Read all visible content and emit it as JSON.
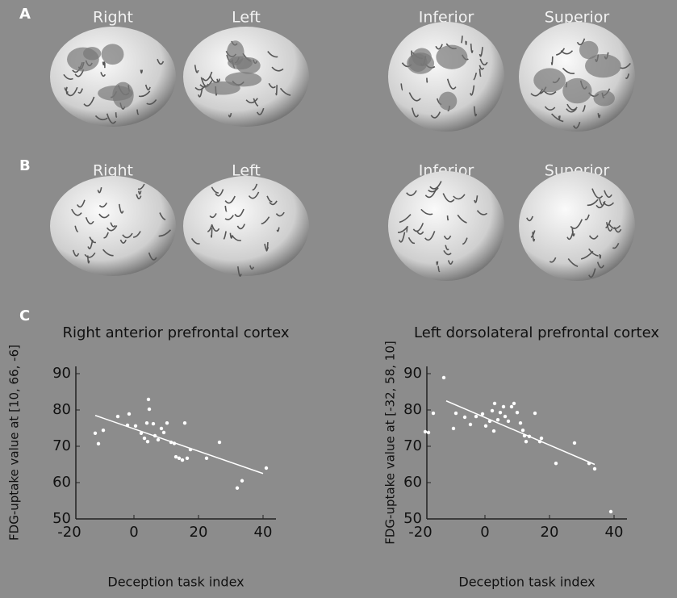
{
  "panels": [
    {
      "label": "A",
      "views": [
        "Right",
        "Left",
        "Inferior",
        "Superior"
      ]
    },
    {
      "label": "B",
      "views": [
        "Right",
        "Left",
        "Inferior",
        "Superior"
      ]
    }
  ],
  "chart_panel_label": "C",
  "chart_data": [
    {
      "type": "scatter",
      "title": "Right anterior prefrontal cortex",
      "x_label": "Deception task index",
      "y_label": "FDG-uptake value at [10, 66, -6]",
      "x": [
        -12,
        -11,
        -9.5,
        -5,
        -1.5,
        -2,
        0.5,
        2.25,
        3.25,
        4.25,
        4.5,
        4.75,
        4,
        6,
        6.5,
        7.5,
        8.5,
        9.25,
        10.25,
        11.5,
        12.5,
        13,
        14,
        15,
        15.75,
        16.5,
        17.5,
        22.5,
        26.5,
        32,
        33.5,
        41
      ],
      "values": [
        73.6,
        70.7,
        74.4,
        78.2,
        78.9,
        75.8,
        75.6,
        73.6,
        72.2,
        71.3,
        82.9,
        80.2,
        76.4,
        76.2,
        72.9,
        71.8,
        74.9,
        73.8,
        76.4,
        71.1,
        70.8,
        67.1,
        66.7,
        66.2,
        76.4,
        66.7,
        69.1,
        66.7,
        71.1,
        58.5,
        60.5,
        64
      ],
      "color": "#ffffff",
      "fit": {
        "x": [
          -12,
          40
        ],
        "y": [
          78.5,
          62.5
        ]
      },
      "xlim": [
        -18,
        44
      ],
      "ylim": [
        50,
        92
      ],
      "xticks": [
        -20,
        0,
        20,
        40
      ],
      "yticks": [
        50,
        60,
        70,
        80,
        90
      ]
    },
    {
      "type": "scatter",
      "title": "Left dorsolateral prefrontal cortex",
      "x_label": "Deception task index",
      "y_label": "FDG-uptake value at [-32, 58, 10]",
      "x": [
        -18.5,
        -17.5,
        -16,
        -12.75,
        -9.75,
        -9,
        -6.25,
        -4.5,
        -2.75,
        -0.75,
        0.25,
        1.5,
        2.25,
        2.75,
        3,
        4,
        4.75,
        5.75,
        6.25,
        7.25,
        8.25,
        9,
        10,
        11,
        11.75,
        12.25,
        12.75,
        13.75,
        15.5,
        17,
        17.5,
        22,
        27.75,
        32.25,
        34,
        39
      ],
      "values": [
        74,
        73.8,
        79.1,
        88.9,
        74.9,
        79.1,
        78,
        76,
        78.2,
        78.9,
        75.6,
        76.9,
        79.8,
        74.2,
        81.8,
        77.3,
        79.3,
        80.9,
        78.2,
        76.9,
        80.9,
        81.8,
        79.3,
        76.4,
        74.4,
        72.9,
        71.3,
        72.7,
        79.1,
        71.3,
        72.2,
        65.3,
        70.9,
        65.3,
        63.8,
        52
      ],
      "color": "#ffffff",
      "fit": {
        "x": [
          -12,
          34
        ],
        "y": [
          82.5,
          65
        ]
      },
      "xlim": [
        -18,
        44
      ],
      "ylim": [
        50,
        92
      ],
      "xticks": [
        -20,
        0,
        20,
        40
      ],
      "yticks": [
        50,
        60,
        70,
        80,
        90
      ]
    }
  ]
}
